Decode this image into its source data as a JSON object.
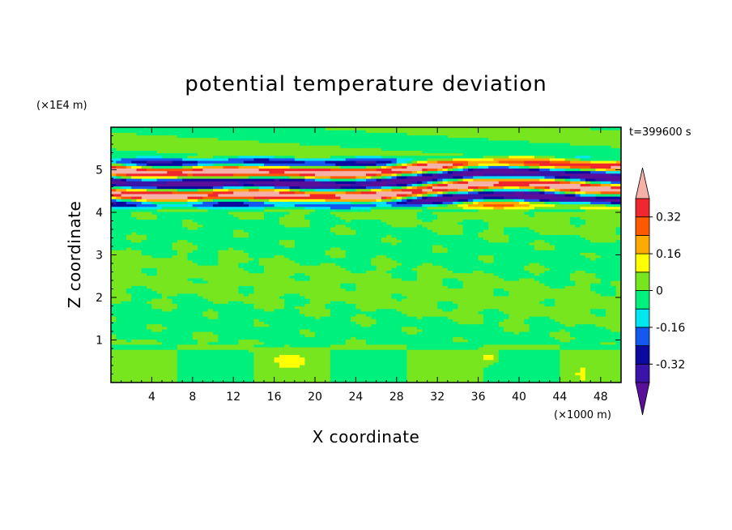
{
  "chart_data": {
    "type": "heatmap",
    "title": "potential temperature deviation",
    "xlabel": "X coordinate",
    "ylabel": "Z coordinate",
    "x_unit": "(×1000 m)",
    "y_unit": "(×1E4 m)",
    "time_label": "t=399600 s",
    "xlim": [
      0,
      50
    ],
    "ylim": [
      0,
      6
    ],
    "x_ticks": [
      "4",
      "8",
      "12",
      "16",
      "20",
      "24",
      "28",
      "32",
      "36",
      "40",
      "44",
      "48"
    ],
    "y_ticks": [
      "1",
      "2",
      "3",
      "4",
      "5"
    ],
    "colorbar": {
      "levels": [
        -0.4,
        -0.32,
        -0.24,
        -0.16,
        -0.08,
        0,
        0.08,
        0.16,
        0.24,
        0.32,
        0.4
      ],
      "colors": [
        "#5a0f9b",
        "#3a14a8",
        "#0a0aa0",
        "#1458f0",
        "#00e6f0",
        "#00f07d",
        "#78e61e",
        "#ffff00",
        "#ffaa00",
        "#ff5a00",
        "#f0282d",
        "#f5b0a8"
      ],
      "labels": [
        "0.32",
        "0.16",
        "0",
        "-0.16",
        "-0.32"
      ],
      "label_values": [
        0.32,
        0.16,
        0,
        -0.16,
        -0.32
      ]
    }
  }
}
